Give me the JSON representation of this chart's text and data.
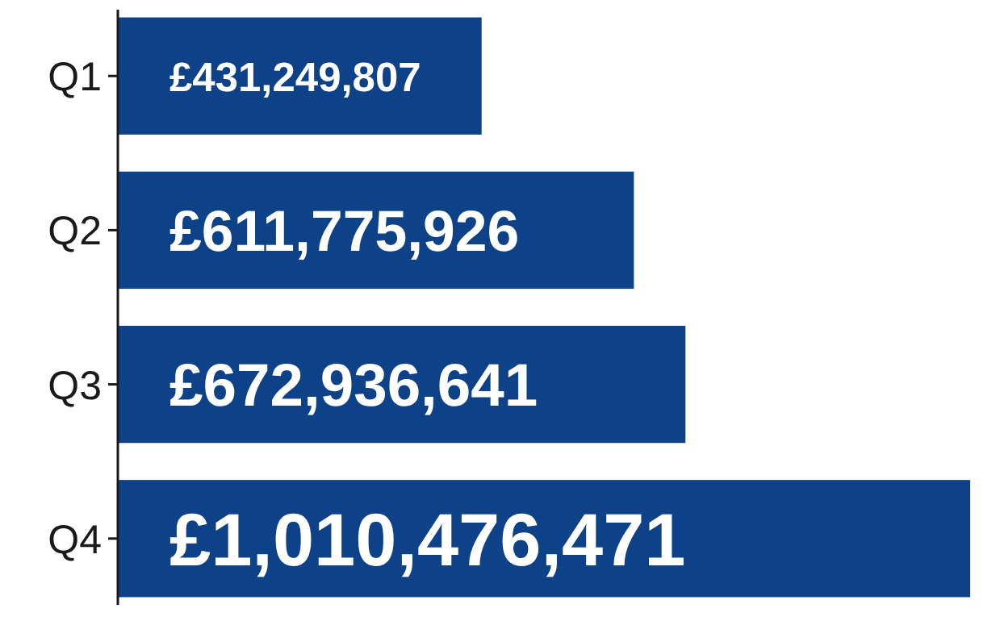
{
  "chart_data": {
    "type": "bar",
    "orientation": "horizontal",
    "categories": [
      "Q1",
      "Q2",
      "Q3",
      "Q4"
    ],
    "values": [
      431249807,
      611775926,
      672936641,
      1010476471
    ],
    "value_labels": [
      "£431,249,807",
      "£611,775,926",
      "£672,936,641",
      "£1,010,476,471"
    ],
    "color": "#0d4288",
    "tick_labels": "y"
  }
}
